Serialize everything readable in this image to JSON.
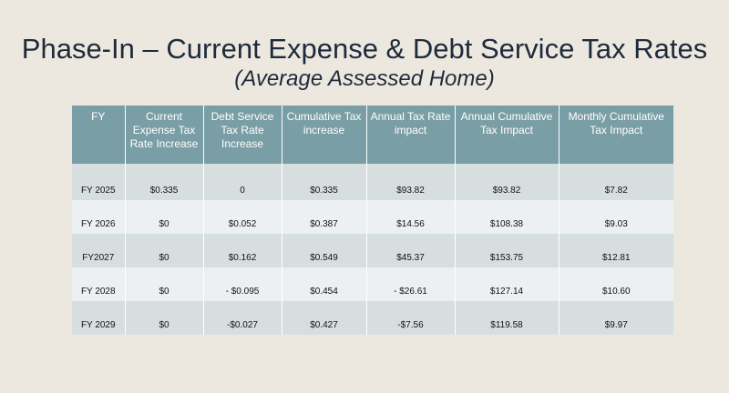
{
  "slide": {
    "title": "Phase-In – Current Expense & Debt Service Tax Rates",
    "subtitle": "(Average Assessed Home)"
  },
  "table": {
    "headers": [
      "FY",
      "Current Expense Tax Rate Increase",
      "Debt Service Tax Rate Increase",
      "Cumulative Tax increase",
      "Annual Tax Rate impact",
      "Annual Cumulative Tax Impact",
      "Monthly Cumulative Tax Impact"
    ],
    "rows": [
      [
        "FY 2025",
        "$0.335",
        "0",
        "$0.335",
        "$93.82",
        "$93.82",
        "$7.82"
      ],
      [
        "FY 2026",
        "$0",
        "$0.052",
        "$0.387",
        "$14.56",
        "$108.38",
        "$9.03"
      ],
      [
        "FY2027",
        "$0",
        "$0.162",
        "$0.549",
        "$45.37",
        "$153.75",
        "$12.81"
      ],
      [
        "FY 2028",
        "$0",
        "- $0.095",
        "$0.454",
        "- $26.61",
        "$127.14",
        "$10.60"
      ],
      [
        "FY 2029",
        "$0",
        "-$0.027",
        "$0.427",
        "-$7.56",
        "$119.58",
        "$9.97"
      ]
    ]
  },
  "colors": {
    "background": "#ece8e0",
    "header_fill": "#7a9ea5",
    "row_dark": "#d7dee0",
    "row_light": "#edf0f1",
    "title_text": "#1f2a3a"
  }
}
